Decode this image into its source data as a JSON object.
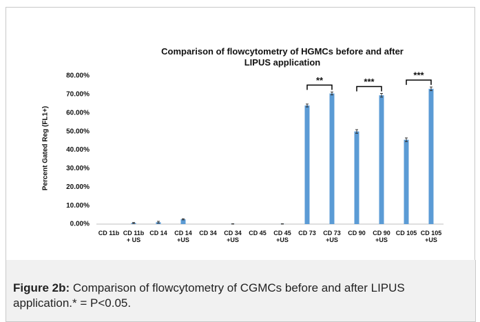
{
  "chart_data": {
    "type": "bar",
    "title": "Comparison of flowcytometry of HGMCs before and after LIPUS application",
    "y_label": "Percent Gated Reg (FL1+)",
    "categories": [
      "CD 11b",
      "CD 11b + US",
      "CD 14",
      "CD 14 +US",
      "CD 34",
      "CD 34 +US",
      "CD 45",
      "CD 45 +US",
      "CD 73",
      "CD 73 +US",
      "CD 90",
      "CD 90 +US",
      "CD 105",
      "CD 105 +US"
    ],
    "values": [
      0,
      0.6,
      1.0,
      2.6,
      0,
      0.1,
      0,
      0.1,
      64,
      70.5,
      50,
      69.5,
      45.5,
      73
    ],
    "errors": [
      0,
      0.3,
      0.5,
      0.3,
      0,
      0.1,
      0,
      0.1,
      0.8,
      0.8,
      1,
      1,
      1,
      1
    ],
    "color": "#5b9bd5",
    "ylim": [
      0,
      80
    ],
    "yticks": [
      {
        "value": 0,
        "label": "0.00%"
      },
      {
        "value": 10,
        "label": "10.00%"
      },
      {
        "value": 20,
        "label": "20.00%"
      },
      {
        "value": 30,
        "label": "30.00%"
      },
      {
        "value": 40,
        "label": "40.00%"
      },
      {
        "value": 50,
        "label": "50.00%"
      },
      {
        "value": 60,
        "label": "60.00%"
      },
      {
        "value": 70,
        "label": "70.00%"
      },
      {
        "value": 80,
        "label": "80.00%"
      }
    ],
    "grid": false,
    "annotations": [
      {
        "text": "**",
        "from": 8,
        "to": 9
      },
      {
        "text": "***",
        "from": 10,
        "to": 11
      },
      {
        "text": "***",
        "from": 12,
        "to": 13
      }
    ]
  },
  "caption": {
    "label": "Figure 2b:",
    "text": "Comparison of flowcytometry of CGMCs before and after LIPUS application.* = P<0.05."
  }
}
